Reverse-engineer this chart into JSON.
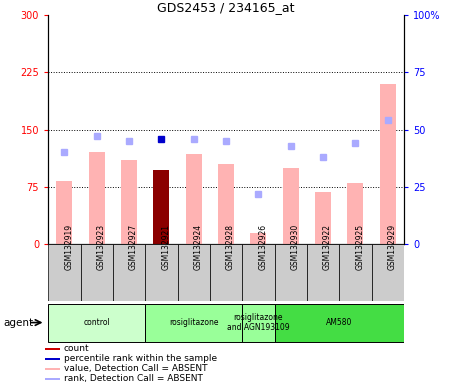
{
  "title": "GDS2453 / 234165_at",
  "samples": [
    "GSM132919",
    "GSM132923",
    "GSM132927",
    "GSM132921",
    "GSM132924",
    "GSM132928",
    "GSM132926",
    "GSM132930",
    "GSM132922",
    "GSM132925",
    "GSM132929"
  ],
  "bar_values": [
    82,
    120,
    110,
    97,
    118,
    105,
    14,
    100,
    68,
    80,
    210
  ],
  "bar_colors": [
    "#ffb3b3",
    "#ffb3b3",
    "#ffb3b3",
    "#8b0000",
    "#ffb3b3",
    "#ffb3b3",
    "#ffb3b3",
    "#ffb3b3",
    "#ffb3b3",
    "#ffb3b3",
    "#ffb3b3"
  ],
  "rank_values": [
    40,
    47,
    45,
    46,
    46,
    45,
    22,
    43,
    38,
    44,
    54
  ],
  "rank_colors": [
    "#aaaaff",
    "#aaaaff",
    "#aaaaff",
    "#0000cc",
    "#aaaaff",
    "#aaaaff",
    "#aaaaff",
    "#aaaaff",
    "#aaaaff",
    "#aaaaff",
    "#aaaaff"
  ],
  "ylim_left": [
    0,
    300
  ],
  "ylim_right": [
    0,
    100
  ],
  "yticks_left": [
    0,
    75,
    150,
    225,
    300
  ],
  "yticks_right": [
    0,
    25,
    50,
    75,
    100
  ],
  "grid_lines": [
    75,
    150,
    225
  ],
  "groups": [
    {
      "label": "control",
      "start": 0,
      "end": 3,
      "color": "#ccffcc"
    },
    {
      "label": "rosiglitazone",
      "start": 3,
      "end": 6,
      "color": "#99ff99"
    },
    {
      "label": "rosiglitazone\nand AGN193109",
      "start": 6,
      "end": 7,
      "color": "#99ff99"
    },
    {
      "label": "AM580",
      "start": 7,
      "end": 11,
      "color": "#44dd44"
    }
  ],
  "agent_label": "agent",
  "legend_items": [
    {
      "color": "#cc0000",
      "label": "count"
    },
    {
      "color": "#0000cc",
      "label": "percentile rank within the sample"
    },
    {
      "color": "#ffb3b3",
      "label": "value, Detection Call = ABSENT"
    },
    {
      "color": "#aaaaff",
      "label": "rank, Detection Call = ABSENT"
    }
  ],
  "bg_color": "#ffffff",
  "plot_bg": "#ffffff",
  "tick_cell_color": "#cccccc"
}
